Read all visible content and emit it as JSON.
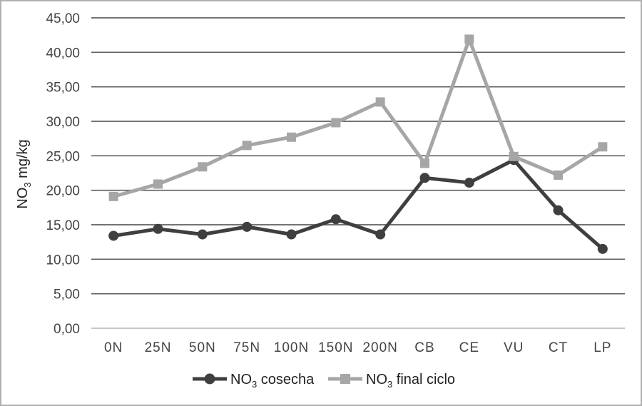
{
  "chart_data": {
    "type": "line",
    "categories": [
      "0N",
      "25N",
      "50N",
      "75N",
      "100N",
      "150N",
      "200N",
      "CB",
      "CE",
      "VU",
      "CT",
      "LP"
    ],
    "series": [
      {
        "name_prefix": "NO",
        "name_sub": "3",
        "name_rest": " cosecha",
        "marker": "circle",
        "color": "#3f3f3f",
        "values": [
          13.4,
          14.4,
          13.6,
          14.7,
          13.6,
          15.8,
          13.6,
          21.8,
          21.1,
          24.4,
          17.1,
          11.5
        ]
      },
      {
        "name_prefix": "NO",
        "name_sub": "3",
        "name_rest": " final ciclo",
        "marker": "square",
        "color": "#a6a6a6",
        "values": [
          19.1,
          20.9,
          23.4,
          26.5,
          27.7,
          29.8,
          32.8,
          23.9,
          41.9,
          24.9,
          22.2,
          26.3
        ]
      }
    ],
    "ylabel_prefix": "NO",
    "ylabel_sub": "3",
    "ylabel_rest": " mg/kg",
    "yticks": [
      "0,00",
      "5,00",
      "10,00",
      "15,00",
      "20,00",
      "25,00",
      "30,00",
      "35,00",
      "40,00",
      "45,00"
    ],
    "ylim": [
      0,
      45
    ],
    "ytick_step": 5,
    "xlabel": "",
    "title": "",
    "grid": true,
    "legend_position": "bottom",
    "grid_color": "#5f5f5f",
    "zero_line_color": "#c6c6c6",
    "frame_color": "#b0b0b0"
  }
}
